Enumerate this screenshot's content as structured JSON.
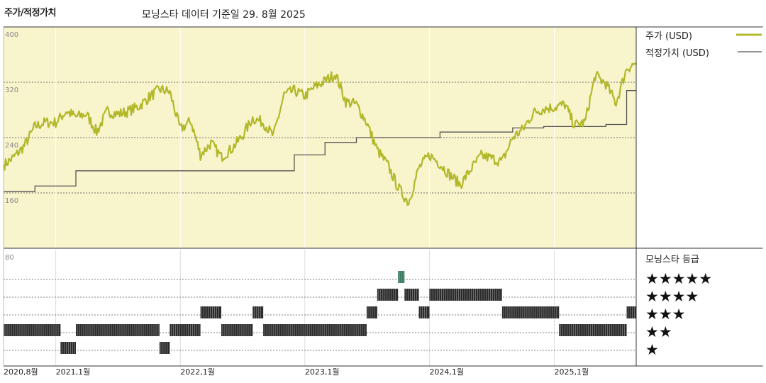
{
  "header": {
    "title": "주가/적정가치",
    "subtitle": "모닝스타 데이터 기준일 29. 8월 2025"
  },
  "legend": {
    "price_label": "주가 (USD)",
    "fair_value_label": "적정가치 (USD)",
    "rating_title": "모닝스타 등급",
    "star_rows": [
      "★★★★★",
      "★★★★",
      "★★★",
      "★★",
      "★"
    ]
  },
  "colors": {
    "price": "#b2b82a",
    "fair_value": "#555555",
    "plot_bg": "#f8f4cc",
    "rating_bar": "#2b2b2b",
    "rating_highlight": "#3d7d63"
  },
  "chart_data": [
    {
      "type": "line",
      "ylim": [
        80,
        400
      ],
      "yticks": [
        "400",
        "320",
        "240",
        "160"
      ],
      "xticks": [
        "2020,8월",
        "2021,1월",
        "2022,1월",
        "2023,1월",
        "2024,1월",
        "2025,1월"
      ],
      "x_range": [
        "2020-08-01",
        "2025-08-29"
      ],
      "series": [
        {
          "name": "주가 (USD)",
          "points": [
            [
              "2020-08-01",
              200
            ],
            [
              "2020-09-01",
              212
            ],
            [
              "2020-10-01",
              228
            ],
            [
              "2020-11-01",
              256
            ],
            [
              "2020-12-01",
              262
            ],
            [
              "2021-01-01",
              262
            ],
            [
              "2021-02-01",
              278
            ],
            [
              "2021-03-01",
              270
            ],
            [
              "2021-04-01",
              274
            ],
            [
              "2021-05-01",
              248
            ],
            [
              "2021-06-01",
              278
            ],
            [
              "2021-07-01",
              274
            ],
            [
              "2021-08-01",
              278
            ],
            [
              "2021-09-01",
              285
            ],
            [
              "2021-10-01",
              298
            ],
            [
              "2021-11-01",
              310
            ],
            [
              "2021-12-01",
              306
            ],
            [
              "2022-01-01",
              252
            ],
            [
              "2022-02-01",
              264
            ],
            [
              "2022-03-01",
              215
            ],
            [
              "2022-04-01",
              232
            ],
            [
              "2022-05-01",
              212
            ],
            [
              "2022-06-01",
              224
            ],
            [
              "2022-07-01",
              242
            ],
            [
              "2022-08-01",
              268
            ],
            [
              "2022-09-01",
              262
            ],
            [
              "2022-10-01",
              242
            ],
            [
              "2022-11-01",
              302
            ],
            [
              "2022-12-01",
              308
            ],
            [
              "2023-01-01",
              300
            ],
            [
              "2023-02-01",
              314
            ],
            [
              "2023-03-01",
              322
            ],
            [
              "2023-04-01",
              332
            ],
            [
              "2023-05-01",
              292
            ],
            [
              "2023-06-01",
              288
            ],
            [
              "2023-07-01",
              262
            ],
            [
              "2023-08-01",
              222
            ],
            [
              "2023-09-01",
              200
            ],
            [
              "2023-10-01",
              168
            ],
            [
              "2023-11-01",
              146
            ],
            [
              "2023-12-01",
              196
            ],
            [
              "2024-01-01",
              215
            ],
            [
              "2024-02-01",
              202
            ],
            [
              "2024-03-01",
              186
            ],
            [
              "2024-04-01",
              172
            ],
            [
              "2024-05-01",
              194
            ],
            [
              "2024-06-01",
              214
            ],
            [
              "2024-07-01",
              210
            ],
            [
              "2024-08-01",
              205
            ],
            [
              "2024-09-01",
              240
            ],
            [
              "2024-10-01",
              252
            ],
            [
              "2024-11-01",
              276
            ],
            [
              "2024-12-01",
              282
            ],
            [
              "2025-01-01",
              284
            ],
            [
              "2025-02-01",
              288
            ],
            [
              "2025-03-01",
              258
            ],
            [
              "2025-04-01",
              262
            ],
            [
              "2025-05-01",
              330
            ],
            [
              "2025-06-01",
              318
            ],
            [
              "2025-07-01",
              290
            ],
            [
              "2025-08-01",
              340
            ],
            [
              "2025-08-29",
              348
            ]
          ]
        },
        {
          "name": "적정가치 (USD)",
          "steps": [
            [
              "2020-08-01",
              162
            ],
            [
              "2020-11-01",
              170
            ],
            [
              "2021-03-01",
              192
            ],
            [
              "2022-12-01",
              215
            ],
            [
              "2023-03-01",
              233
            ],
            [
              "2023-06-01",
              240
            ],
            [
              "2024-02-01",
              248
            ],
            [
              "2024-09-01",
              254
            ],
            [
              "2024-12-01",
              256
            ],
            [
              "2025-06-01",
              259
            ],
            [
              "2025-08-01",
              308
            ],
            [
              "2025-08-29",
              308
            ]
          ]
        }
      ]
    },
    {
      "type": "bar",
      "title": "모닝스타 등급",
      "ytick": "80",
      "rating_periods": [
        [
          "2020-08-01",
          2
        ],
        [
          "2021-01-15",
          1
        ],
        [
          "2021-03-01",
          2
        ],
        [
          "2021-11-01",
          1
        ],
        [
          "2021-12-01",
          2
        ],
        [
          "2022-03-01",
          3
        ],
        [
          "2022-05-01",
          2
        ],
        [
          "2022-08-01",
          3
        ],
        [
          "2022-09-01",
          2
        ],
        [
          "2023-07-01",
          3
        ],
        [
          "2023-08-01",
          4
        ],
        [
          "2023-10-01",
          5
        ],
        [
          "2023-10-20",
          4
        ],
        [
          "2023-12-01",
          3
        ],
        [
          "2024-01-01",
          4
        ],
        [
          "2024-08-01",
          3
        ],
        [
          "2025-01-15",
          2
        ],
        [
          "2025-08-01",
          3
        ],
        [
          "2025-08-29",
          3
        ]
      ]
    }
  ]
}
